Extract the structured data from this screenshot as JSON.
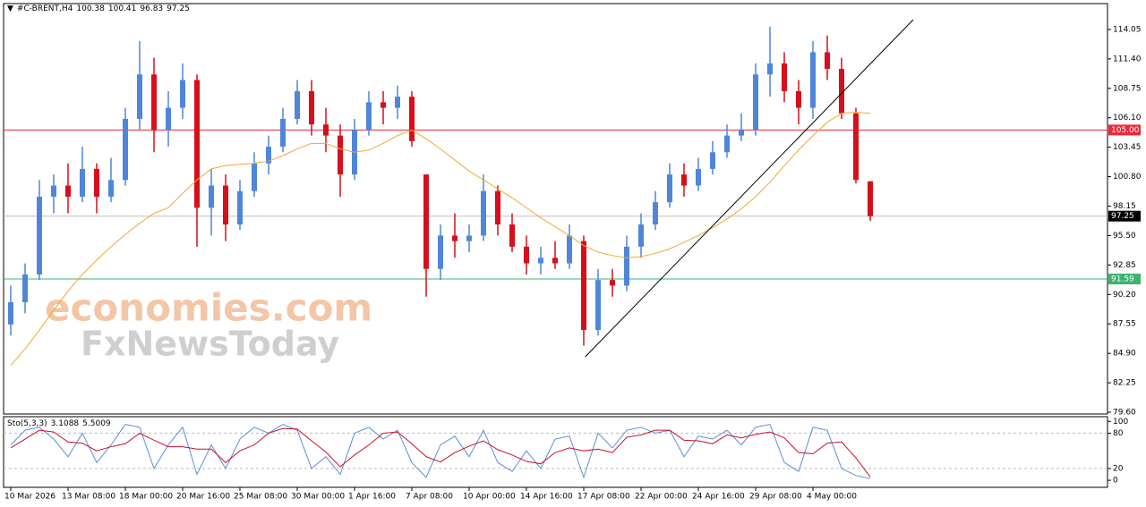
{
  "chart_data": {
    "type": "candlestick",
    "symbol": "#C-BRENT,H4",
    "categories": [
      "10 Mar 2026",
      null,
      null,
      null,
      "13 Mar 08:00",
      null,
      null,
      null,
      "18 Mar 00:00",
      null,
      null,
      null,
      "20 Mar 16:00",
      null,
      null,
      null,
      "25 Mar 08:00",
      null,
      null,
      null,
      "30 Mar 00:00",
      null,
      null,
      null,
      "1 Apr 16:00",
      null,
      null,
      null,
      "7 Apr 08:00",
      null,
      null,
      null,
      "10 Apr 00:00",
      null,
      null,
      null,
      "14 Apr 16:00",
      null,
      null,
      null,
      "17 Apr 08:00",
      null,
      null,
      null,
      "22 Apr 00:00",
      null,
      null,
      null,
      "24 Apr 16:00",
      null,
      null,
      null,
      "29 Apr 08:00",
      null,
      null,
      null,
      "4 May 00:00",
      null,
      null,
      null,
      null
    ],
    "candles": {
      "up_color": "#4f86d9",
      "down_color": "#d60f1c",
      "open": [
        87.5,
        89.5,
        92,
        99,
        100,
        99,
        101.5,
        99,
        100.5,
        106,
        110,
        105,
        107,
        109.5,
        98,
        100,
        96.5,
        99.5,
        102,
        103.5,
        106,
        108.5,
        105.5,
        104.5,
        101,
        105,
        107.5,
        107,
        108,
        101,
        92.5,
        95.5,
        95,
        95.5,
        99.5,
        96.5,
        94.5,
        93,
        93.5,
        93,
        95,
        87,
        91.5,
        91,
        94.5,
        96.5,
        98.5,
        101,
        100,
        101.5,
        103,
        104.5,
        105,
        110,
        111,
        108.5,
        107,
        112,
        110.5,
        106.5,
        100.38
      ],
      "high": [
        91,
        93,
        100.5,
        101,
        102,
        103.5,
        102,
        102.5,
        107,
        113,
        111.5,
        108.5,
        111,
        110,
        101.5,
        101,
        100.5,
        103,
        104.5,
        107,
        109.5,
        109.5,
        107,
        105.5,
        106,
        108.5,
        108.5,
        109,
        108.5,
        101,
        96.5,
        97.5,
        96.5,
        101,
        100,
        97.5,
        95.5,
        94.5,
        95,
        96.5,
        95.5,
        92.5,
        92.5,
        95.5,
        97.5,
        99.5,
        102,
        102,
        102.5,
        104,
        105.5,
        106.5,
        111,
        114.3,
        112,
        109.5,
        113,
        113.5,
        111.5,
        107,
        100.41
      ],
      "low": [
        86.5,
        88.5,
        91.5,
        97.5,
        97.5,
        98.5,
        97.5,
        98.5,
        100,
        105,
        103,
        103.5,
        106,
        94.5,
        95.5,
        95,
        96,
        99,
        101,
        103,
        105.5,
        104.5,
        103,
        99,
        100.5,
        104.5,
        105.5,
        106,
        103.5,
        90,
        91.5,
        93.5,
        94,
        95,
        95.5,
        94,
        92,
        92,
        92.5,
        92.5,
        85.6,
        86.5,
        90,
        90.5,
        93.5,
        96,
        98,
        99,
        99.5,
        101,
        102.5,
        104,
        104.5,
        108,
        107.5,
        105.5,
        106,
        109.5,
        106,
        100.2,
        96.83
      ],
      "close": [
        89.5,
        92,
        99,
        100,
        99,
        101.5,
        99,
        100.5,
        106,
        110,
        105,
        107,
        109.5,
        98,
        100,
        96.5,
        99.5,
        102,
        103.5,
        106,
        108.5,
        105.5,
        104.5,
        101,
        105,
        107.5,
        107,
        108,
        104,
        92.5,
        95.5,
        95,
        95.5,
        99.5,
        96.5,
        94.5,
        93,
        93.5,
        93,
        95.5,
        87,
        91.5,
        91,
        94.5,
        96.5,
        98.5,
        101,
        100,
        101.5,
        103,
        104.5,
        105,
        110,
        111,
        108.5,
        107,
        112,
        110.5,
        106.5,
        100.5,
        97.25
      ]
    },
    "ma": {
      "color": "#f0a830",
      "values": [
        83.8,
        85.3,
        87,
        88.8,
        90.5,
        92,
        93.3,
        94.5,
        95.6,
        96.6,
        97.5,
        98,
        99.3,
        100.5,
        101.5,
        101.8,
        101.9,
        102,
        102.2,
        102.7,
        103.3,
        103.8,
        103.8,
        103.3,
        103,
        103.2,
        103.8,
        104.5,
        105,
        104.2,
        103.3,
        102.3,
        101.3,
        100.5,
        99.7,
        98.9,
        98,
        97.1,
        96.3,
        95.5,
        94.6,
        94,
        93.7,
        93.5,
        93.6,
        93.9,
        94.3,
        94.9,
        95.5,
        96.2,
        97,
        97.9,
        99,
        100.3,
        101.8,
        103.2,
        104.5,
        105.7,
        106.5,
        106.6,
        106.5
      ]
    },
    "trendline": {
      "x": [
        40.1,
        63
      ],
      "y": [
        84.58,
        114.93
      ],
      "color": "#000000"
    },
    "hlines": [
      {
        "value": 105,
        "label": "105.00",
        "color": "#e8293a",
        "box": "#e8293a",
        "text": "#ffffff"
      },
      {
        "value": 97.25,
        "color": "#c0c0c0",
        "box": "#000000",
        "text": "#ffffff"
      },
      {
        "value": 91.59,
        "color": "#3cb371",
        "box": "#3cb371",
        "text": "#ffffff"
      }
    ],
    "ylim": [
      79.44,
      116.38
    ],
    "yticks": [
      {
        "value": 114.05,
        "label": "114.05"
      },
      {
        "value": 111.4,
        "label": "111.40"
      },
      {
        "value": 108.75,
        "label": "108.75"
      },
      {
        "value": 106.1,
        "label": "106.10"
      },
      {
        "value": 103.45,
        "label": "103.45"
      },
      {
        "value": 100.8,
        "label": "100.80"
      },
      {
        "value": 98.15,
        "label": "98.15"
      },
      {
        "value": 95.5,
        "label": "95.50"
      },
      {
        "value": 92.85,
        "label": "92.85"
      },
      {
        "value": 90.2,
        "label": "90.20"
      },
      {
        "value": 87.55,
        "label": "87.55"
      },
      {
        "value": 84.9,
        "label": "84.90"
      },
      {
        "value": 82.25,
        "label": "82.25"
      },
      {
        "value": 79.6,
        "label": "79.60"
      }
    ],
    "watermark": [
      {
        "text": "economies.com",
        "color": "#f2c6a6"
      },
      {
        "text": "FxNewsToday",
        "color": "#cfcfcf"
      }
    ],
    "stochastic": {
      "name": "Sto(5,3,3)",
      "ylim": [
        -12,
        108
      ],
      "yticks": [
        0,
        20,
        80,
        100
      ],
      "levels": [
        20,
        80
      ],
      "main": {
        "color": "#5b8fd9",
        "values": [
          60,
          85,
          90,
          70,
          40,
          80,
          30,
          60,
          95,
          90,
          20,
          60,
          90,
          10,
          60,
          20,
          70,
          90,
          80,
          95,
          85,
          20,
          40,
          10,
          80,
          90,
          70,
          85,
          30,
          5,
          60,
          75,
          40,
          85,
          30,
          15,
          50,
          20,
          70,
          75,
          5,
          80,
          55,
          85,
          90,
          80,
          85,
          40,
          75,
          70,
          85,
          60,
          90,
          95,
          30,
          15,
          90,
          85,
          20,
          8,
          3.1088
        ]
      },
      "signal": {
        "color": "#c8102e",
        "values": [
          55,
          70,
          85,
          82,
          65,
          63,
          50,
          57,
          62,
          80,
          68,
          57,
          57,
          53,
          53,
          30,
          50,
          60,
          80,
          88,
          87,
          67,
          48,
          23,
          43,
          60,
          80,
          82,
          62,
          40,
          31,
          47,
          58,
          67,
          52,
          43,
          32,
          28,
          47,
          55,
          50,
          53,
          47,
          73,
          77,
          85,
          85,
          68,
          67,
          62,
          77,
          72,
          78,
          82,
          72,
          47,
          45,
          63,
          65,
          38,
          5.5009
        ]
      }
    }
  }
}
